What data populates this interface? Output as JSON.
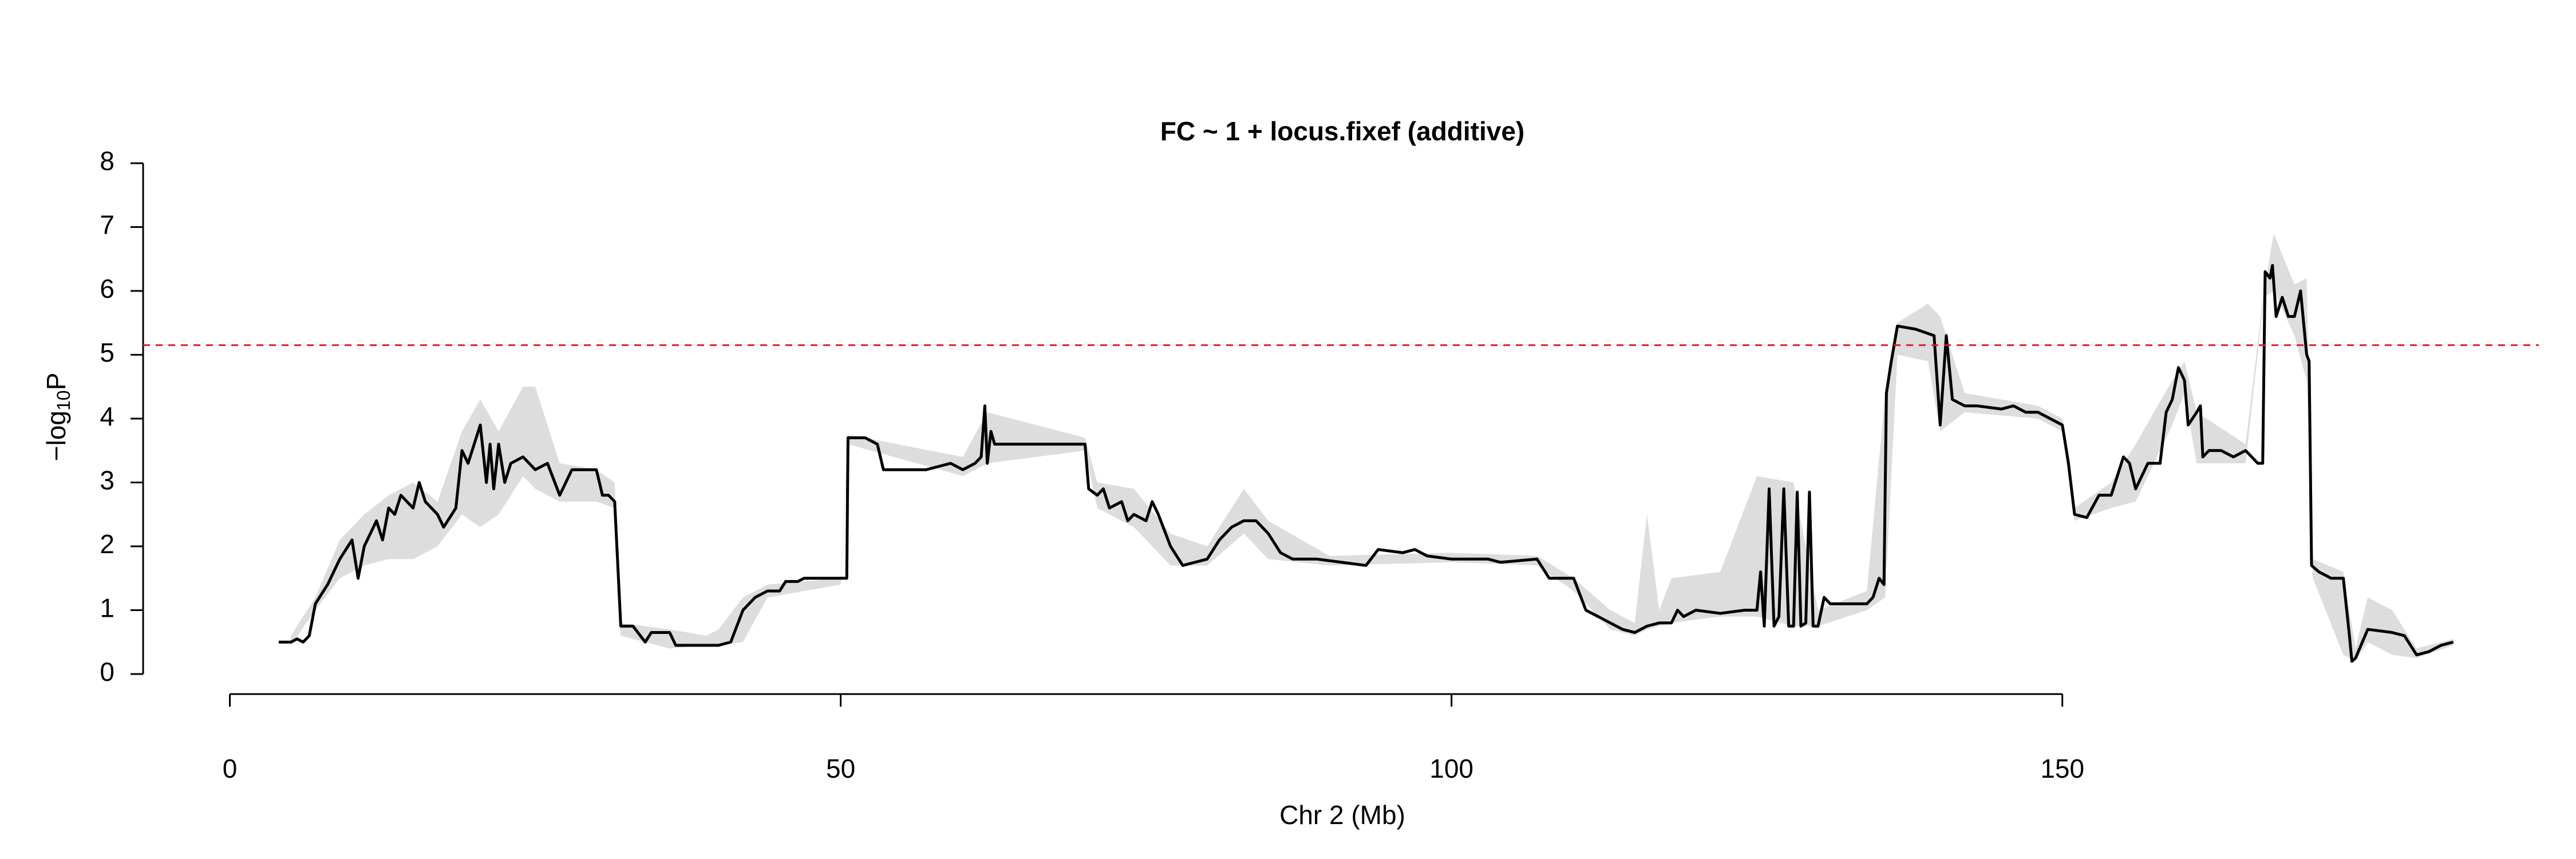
{
  "chart_data": {
    "type": "line",
    "title": "FC ~ 1 + locus.fixef (additive)",
    "xlabel": "Chr 2 (Mb)",
    "ylabel": {
      "main": "−log",
      "subscript": "10",
      "suffix": "P"
    },
    "xlim": [
      -7.1,
      189
    ],
    "ylim": [
      0,
      8
    ],
    "xticks": [
      0,
      50,
      100,
      150
    ],
    "yticks": [
      0,
      1,
      2,
      3,
      4,
      5,
      6,
      7,
      8
    ],
    "threshold": {
      "value": 5.15,
      "color": "#e41a1c"
    },
    "x": [
      4,
      5,
      5.5,
      6,
      6.5,
      7,
      8,
      9,
      10,
      10.5,
      11,
      12,
      12.5,
      13,
      13.5,
      14,
      15,
      15.5,
      16,
      16.5,
      17,
      17.5,
      18.5,
      19,
      19.5,
      20,
      20.5,
      21,
      21.3,
      21.6,
      22,
      22.5,
      23,
      24,
      25,
      26,
      27,
      28,
      29,
      30,
      30.5,
      31,
      31.5,
      32,
      33,
      34,
      34.5,
      36,
      36.5,
      40,
      41,
      42,
      43,
      44,
      45,
      45.5,
      46.5,
      47,
      50,
      50.5,
      50.6,
      52,
      53,
      53.5,
      55,
      57,
      58,
      59,
      60,
      61,
      61.5,
      61.8,
      62,
      62.3,
      62.6,
      64,
      70,
      70.3,
      71,
      71.5,
      72,
      73,
      73.5,
      74,
      75,
      75.5,
      76,
      77,
      78,
      79,
      80,
      81,
      82,
      83,
      84,
      85,
      86,
      87,
      89,
      91,
      93,
      94,
      96,
      97,
      98,
      100,
      103,
      104,
      107,
      108,
      110,
      111,
      112,
      113,
      114,
      115,
      116,
      117,
      118,
      118.5,
      119,
      120,
      122,
      124,
      125,
      125.3,
      125.6,
      126,
      126.4,
      126.8,
      127.2,
      127.6,
      128,
      128.3,
      128.6,
      129,
      129.3,
      129.6,
      130,
      130.5,
      131,
      132,
      134,
      134.5,
      135,
      135.4,
      135.6,
      136,
      136.5,
      138,
      139.5,
      140,
      140.5,
      141,
      142,
      143,
      145,
      146,
      147,
      148,
      149,
      150,
      150.5,
      151,
      152,
      153,
      154,
      155,
      155.5,
      156,
      157,
      158,
      158.5,
      159,
      159.5,
      160,
      160.3,
      161,
      161.3,
      161.5,
      162,
      163,
      164,
      165,
      166,
      166.4,
      166.6,
      167,
      167.2,
      167.5,
      168,
      168.5,
      169,
      169.5,
      170,
      170.2,
      170.4,
      171,
      172,
      173,
      173.5,
      173.7,
      174,
      175,
      177,
      178,
      179,
      180,
      180.5,
      181,
      182
    ],
    "series": [
      {
        "color": "#000000",
        "values": [
          0.5,
          0.5,
          0.55,
          0.5,
          0.6,
          1.1,
          1.4,
          1.8,
          2.1,
          1.5,
          2.0,
          2.4,
          2.1,
          2.6,
          2.5,
          2.8,
          2.6,
          3.0,
          2.7,
          2.6,
          2.5,
          2.3,
          2.6,
          3.5,
          3.3,
          3.6,
          3.9,
          3.0,
          3.6,
          2.9,
          3.6,
          3.0,
          3.3,
          3.4,
          3.2,
          3.3,
          2.8,
          3.2,
          3.2,
          3.2,
          2.8,
          2.8,
          2.7,
          0.75,
          0.75,
          0.5,
          0.65,
          0.65,
          0.45,
          0.45,
          0.5,
          1.0,
          1.2,
          1.3,
          1.3,
          1.45,
          1.45,
          1.5,
          1.5,
          1.5,
          3.7,
          3.7,
          3.6,
          3.2,
          3.2,
          3.2,
          3.25,
          3.3,
          3.2,
          3.3,
          3.4,
          4.2,
          3.3,
          3.8,
          3.6,
          3.6,
          3.6,
          2.9,
          2.8,
          2.9,
          2.6,
          2.7,
          2.4,
          2.5,
          2.4,
          2.7,
          2.5,
          2.0,
          1.7,
          1.75,
          1.8,
          2.1,
          2.3,
          2.4,
          2.4,
          2.2,
          1.9,
          1.8,
          1.8,
          1.75,
          1.7,
          1.95,
          1.9,
          1.95,
          1.85,
          1.8,
          1.8,
          1.75,
          1.8,
          1.5,
          1.5,
          1.0,
          0.9,
          0.8,
          0.7,
          0.65,
          0.75,
          0.8,
          0.8,
          1.0,
          0.9,
          1.0,
          0.95,
          1.0,
          1.0,
          1.6,
          0.75,
          2.9,
          0.75,
          0.9,
          2.9,
          0.75,
          0.75,
          2.85,
          0.75,
          0.8,
          2.85,
          0.75,
          0.75,
          1.2,
          1.1,
          1.1,
          1.1,
          1.2,
          1.5,
          1.4,
          4.4,
          4.9,
          5.45,
          5.4,
          5.3,
          3.9,
          5.3,
          4.3,
          4.2,
          4.2,
          4.15,
          4.2,
          4.1,
          4.1,
          4.0,
          3.9,
          3.3,
          2.5,
          2.45,
          2.8,
          2.8,
          3.4,
          3.3,
          2.9,
          3.3,
          3.3,
          4.1,
          4.3,
          4.8,
          4.6,
          3.9,
          4.1,
          4.2,
          3.4,
          3.5,
          3.5,
          3.4,
          3.5,
          3.3,
          3.3,
          6.3,
          6.2,
          6.4,
          5.6,
          5.9,
          5.6,
          5.6,
          6.0,
          5.0,
          4.9,
          1.7,
          1.6,
          1.5,
          1.5,
          0.6,
          0.2,
          0.25,
          0.7,
          0.65,
          0.6,
          0.3,
          0.35,
          0.4,
          0.45,
          0.5
        ]
      }
    ],
    "band": {
      "color": "#dddddd",
      "x": [
        5,
        7,
        9,
        11,
        13,
        15,
        17,
        19,
        20.5,
        22,
        24,
        25,
        27,
        30,
        31.5,
        32,
        36,
        39,
        40,
        42,
        44,
        50,
        50.6,
        60,
        62,
        70,
        71,
        74,
        77,
        80,
        83,
        85,
        90,
        100,
        107,
        110,
        113,
        115,
        116,
        117,
        118,
        122,
        125,
        128,
        130,
        134,
        135.5,
        136.5,
        139,
        140,
        142,
        148,
        150,
        151,
        154,
        156,
        159,
        160,
        161,
        165,
        166.5,
        167.3,
        169,
        170,
        170.5,
        173,
        174,
        175,
        177,
        179,
        182
      ],
      "lower": [
        0.45,
        1.0,
        1.5,
        1.7,
        1.8,
        1.8,
        2.0,
        2.5,
        2.3,
        2.5,
        3.1,
        2.9,
        2.7,
        2.7,
        2.6,
        0.6,
        0.4,
        0.45,
        0.45,
        0.5,
        1.2,
        1.4,
        3.6,
        3.1,
        3.3,
        3.5,
        2.6,
        2.3,
        1.7,
        1.7,
        2.2,
        1.8,
        1.7,
        1.75,
        1.7,
        1.3,
        0.7,
        0.6,
        0.7,
        0.75,
        0.8,
        0.9,
        0.9,
        0.75,
        0.75,
        1.0,
        1.2,
        5.0,
        4.9,
        3.8,
        4.1,
        4.0,
        3.8,
        2.4,
        2.6,
        2.7,
        3.9,
        4.4,
        3.3,
        3.3,
        5.9,
        6.0,
        5.3,
        4.6,
        1.5,
        0.3,
        0.2,
        0.5,
        0.3,
        0.25,
        0.45
      ],
      "upper": [
        0.6,
        1.2,
        2.1,
        2.5,
        2.8,
        3.0,
        2.7,
        3.8,
        4.3,
        3.8,
        4.5,
        4.5,
        3.3,
        3.2,
        3.0,
        0.8,
        0.7,
        0.6,
        0.7,
        1.2,
        1.4,
        1.5,
        3.75,
        3.4,
        4.1,
        3.7,
        3.0,
        2.9,
        2.2,
        2.0,
        2.9,
        2.4,
        1.85,
        1.9,
        1.85,
        1.5,
        1.0,
        0.8,
        2.5,
        1.0,
        1.5,
        1.6,
        3.1,
        3.0,
        1.0,
        1.3,
        4.4,
        5.5,
        5.8,
        5.6,
        4.4,
        4.2,
        4.0,
        2.6,
        3.0,
        3.6,
        4.6,
        4.9,
        4.1,
        3.6,
        6.0,
        6.9,
        6.1,
        6.2,
        1.8,
        1.6,
        0.4,
        1.2,
        1.0,
        0.4,
        0.55
      ]
    }
  }
}
